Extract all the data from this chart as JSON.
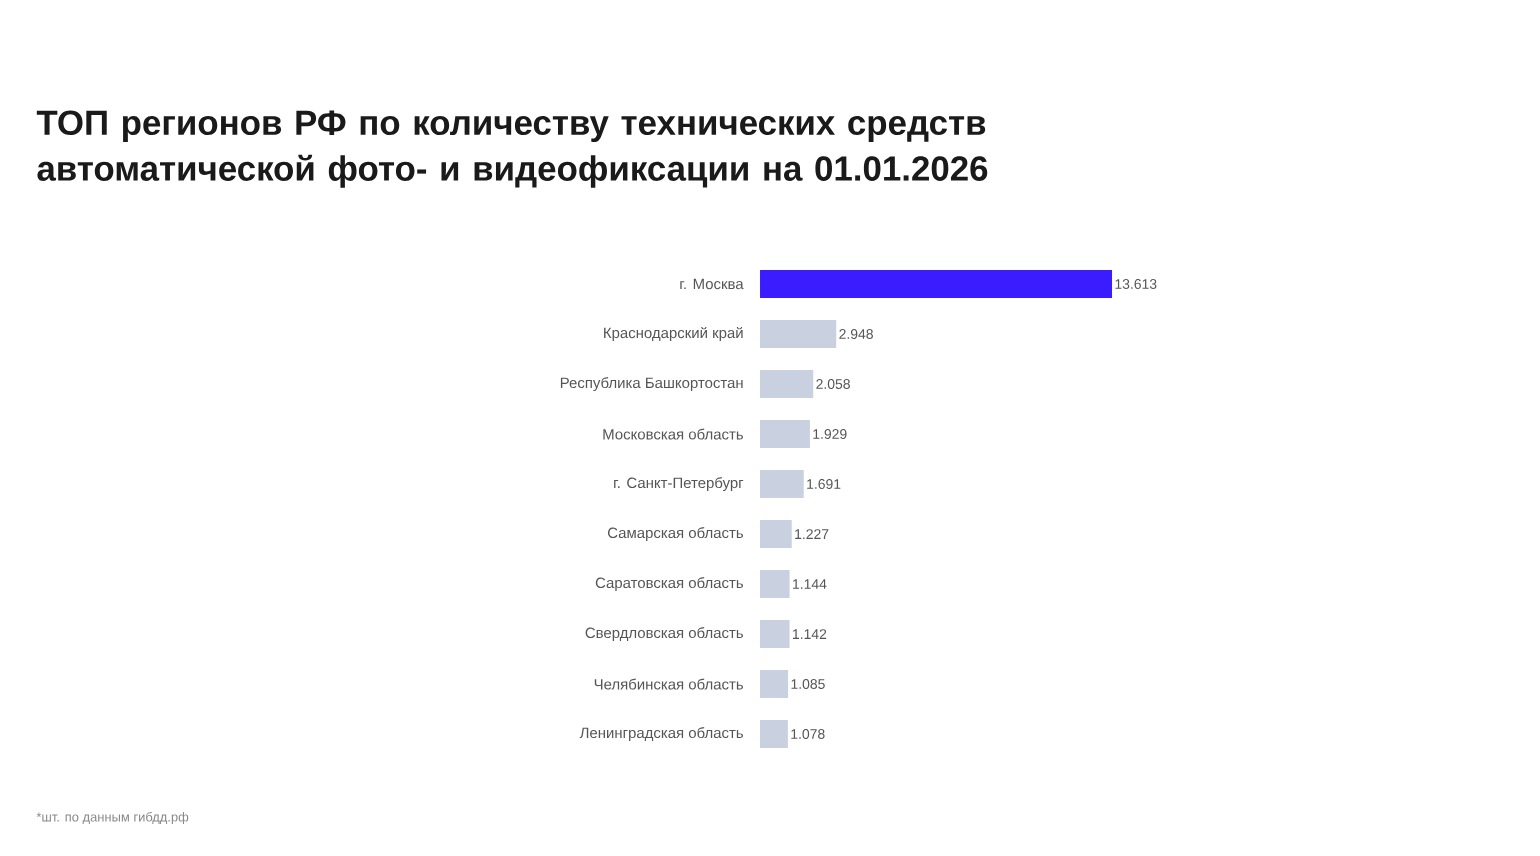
{
  "chart_data": {
    "type": "bar",
    "orientation": "horizontal",
    "title": "ТОП регионов РФ по количеству технических средств автоматической фото- и видеофиксации на 01.01.2026",
    "categories": [
      "г. Москва",
      "Краснодарский край",
      "Республика Башкортостан",
      "Московская область",
      "г. Санкт-Петербург",
      "Самарская область",
      "Саратовская область",
      "Свердловская область",
      "Челябинская область",
      "Ленинградская область"
    ],
    "values": [
      13613,
      2948,
      2058,
      1929,
      1691,
      1227,
      1144,
      1142,
      1085,
      1078
    ],
    "value_labels": [
      "13.613",
      "2.948",
      "2.058",
      "1.929",
      "1.691",
      "1.227",
      "1.144",
      "1.142",
      "1.085",
      "1.078"
    ],
    "colors": [
      "#3a1cff",
      "#c9d0e0",
      "#c9d0e0",
      "#c9d0e0",
      "#c9d0e0",
      "#c9d0e0",
      "#c9d0e0",
      "#c9d0e0",
      "#c9d0e0",
      "#c9d0e0"
    ],
    "annotations": [
      "*шт. по данным гибдд.рф"
    ]
  }
}
